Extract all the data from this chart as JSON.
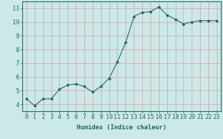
{
  "x": [
    0,
    1,
    2,
    3,
    4,
    5,
    6,
    7,
    8,
    9,
    10,
    11,
    12,
    13,
    14,
    15,
    16,
    17,
    18,
    19,
    20,
    21,
    22,
    23
  ],
  "y": [
    4.4,
    3.9,
    4.4,
    4.4,
    5.1,
    5.4,
    5.5,
    5.3,
    4.9,
    5.3,
    5.9,
    7.1,
    8.5,
    10.4,
    10.7,
    10.75,
    11.1,
    10.5,
    10.2,
    9.85,
    10.0,
    10.1,
    10.1,
    10.1
  ],
  "xlim": [
    -0.5,
    23.5
  ],
  "ylim": [
    3.5,
    11.5
  ],
  "yticks": [
    4,
    5,
    6,
    7,
    8,
    9,
    10,
    11
  ],
  "xticks": [
    0,
    1,
    2,
    3,
    4,
    5,
    6,
    7,
    8,
    9,
    10,
    11,
    12,
    13,
    14,
    15,
    16,
    17,
    18,
    19,
    20,
    21,
    22,
    23
  ],
  "xlabel": "Humidex (Indice chaleur)",
  "line_color": "#1a6b5a",
  "marker_color": "#1a6b5a",
  "bg_color": "#cce8e8",
  "grid_color": "#d4a0a0",
  "xlabel_fontsize": 6.5,
  "tick_fontsize": 6
}
